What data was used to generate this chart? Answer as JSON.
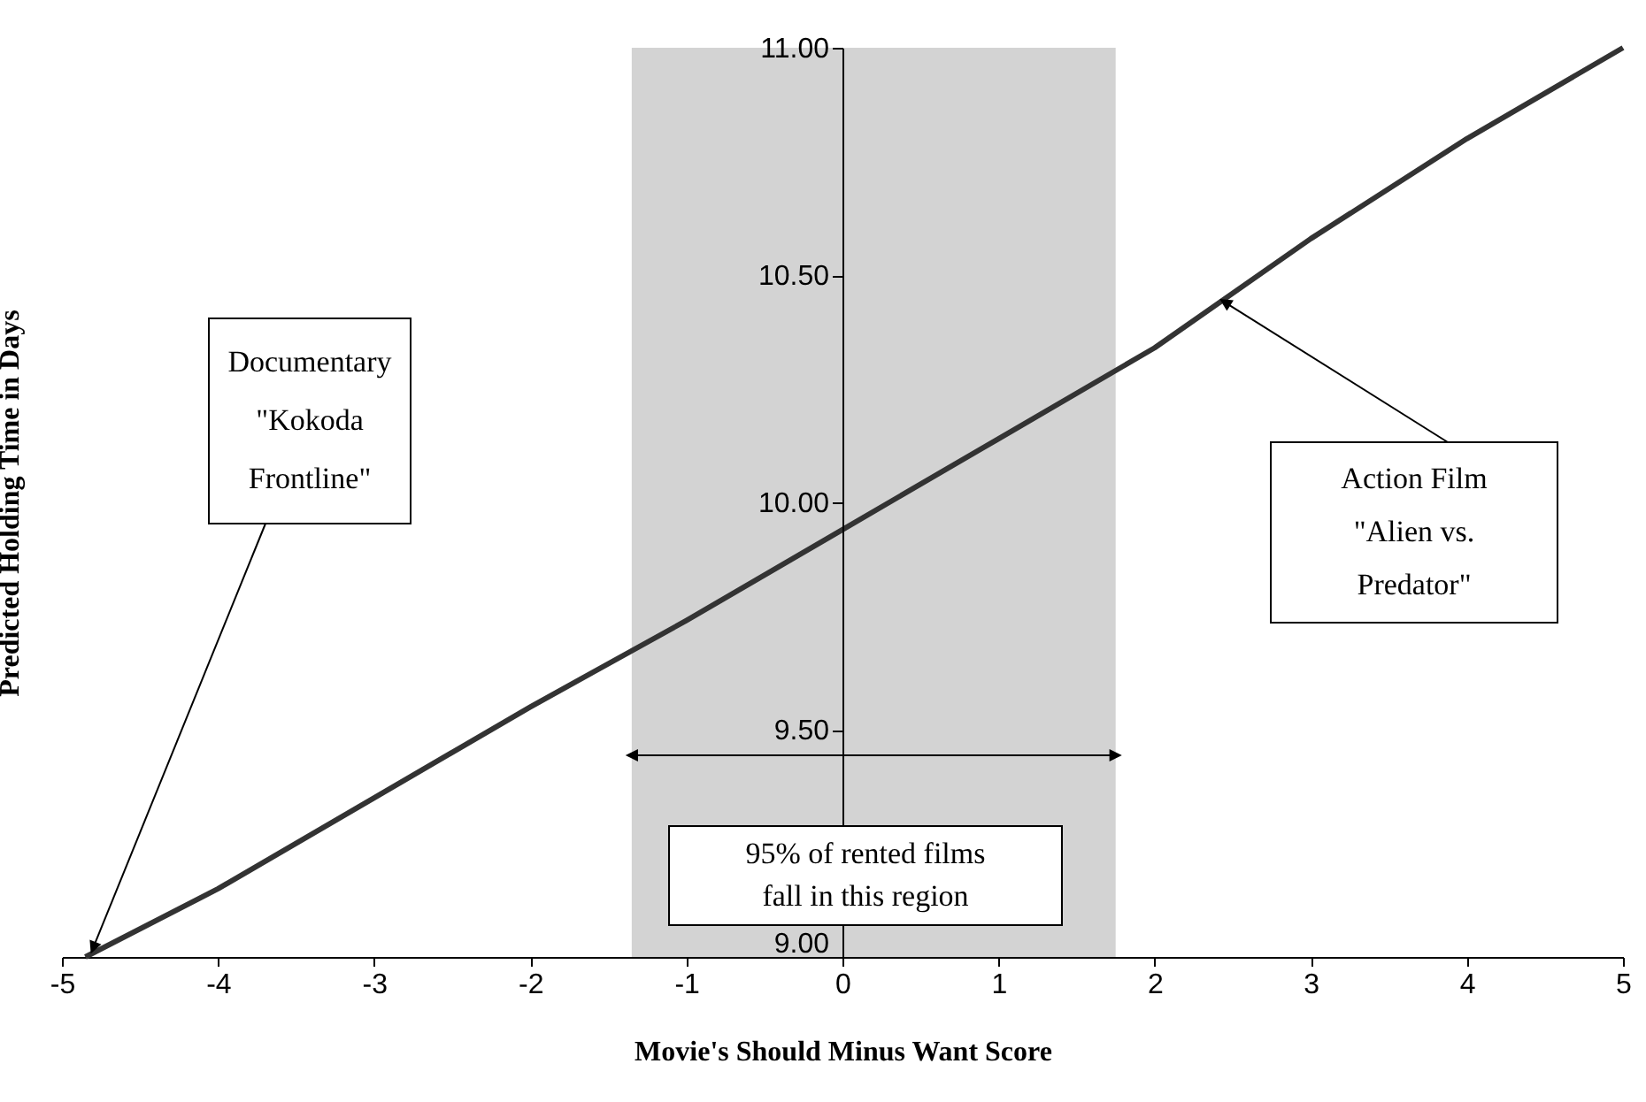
{
  "chart_data": {
    "type": "line",
    "xlabel": "Movie's Should Minus Want Score",
    "ylabel": "Predicted Holding Time in Days",
    "x": [
      -4.85,
      -4,
      -3,
      -2,
      -1,
      0,
      1,
      2,
      3,
      4,
      5
    ],
    "series": [
      {
        "color": "#333333",
        "values": [
          9.0,
          9.15,
          9.35,
          9.55,
          9.74,
          9.94,
          10.14,
          10.34,
          10.58,
          10.8,
          11.0
        ]
      }
    ],
    "xlim": [
      -5,
      5
    ],
    "ylim": [
      9,
      11
    ],
    "xticks": [
      -5,
      -4,
      -3,
      -2,
      -1,
      0,
      1,
      2,
      3,
      4,
      5
    ],
    "yticks": [
      {
        "value": 9,
        "label": "9.00"
      },
      {
        "value": 9.5,
        "label": "9.50"
      },
      {
        "value": 10,
        "label": "10.00"
      },
      {
        "value": 10.5,
        "label": "10.50"
      },
      {
        "value": 11,
        "label": "11.00"
      }
    ],
    "bands": [
      {
        "axis": "x",
        "from": -1.35,
        "to": 1.75,
        "color": "#d3d3d3"
      }
    ],
    "annotations": [
      {
        "text": "Documentary \"Kokoda Frontline\"",
        "x": -4.8,
        "y": 9.02
      },
      {
        "text": "Action Film \"Alien vs. Predator\"",
        "x": 2.45,
        "y": 10.44
      },
      "95% of rented films fall in this region"
    ],
    "grid": false,
    "legend": false,
    "marker": "none",
    "line_style": "solid"
  }
}
